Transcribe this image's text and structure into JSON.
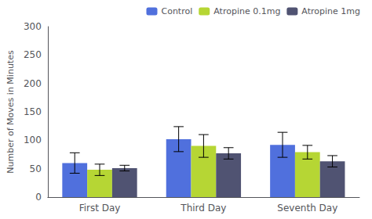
{
  "chart_data": {
    "type": "bar",
    "categories": [
      "First Day",
      "Third Day",
      "Seventh Day"
    ],
    "series": [
      {
        "name": "Control",
        "values": [
          60,
          102,
          92
        ],
        "errors": [
          18,
          22,
          22
        ]
      },
      {
        "name": "Atropine 0.1mg",
        "values": [
          48,
          90,
          79
        ],
        "errors": [
          10,
          20,
          12
        ]
      },
      {
        "name": "Atropine 1mg",
        "values": [
          51,
          77,
          63
        ],
        "errors": [
          5,
          10,
          10
        ]
      }
    ],
    "ylabel": "Number of Moves in Minutes",
    "ylim": [
      0,
      300
    ],
    "yticks": [
      0,
      50,
      100,
      150,
      200,
      250,
      300
    ],
    "grid": false,
    "legend": "upper right"
  }
}
